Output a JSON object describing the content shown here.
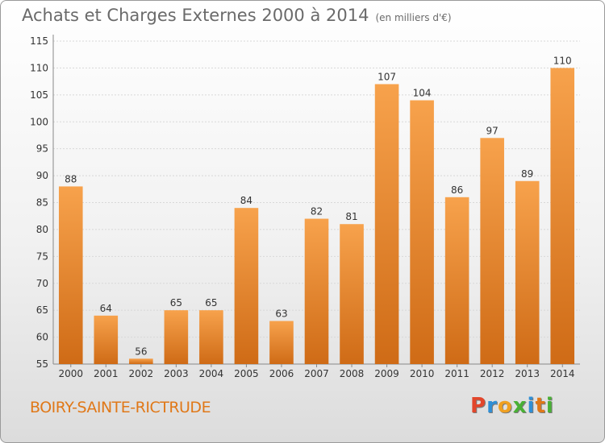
{
  "header": {
    "title": "Achats et Charges Externes 2000 à 2014",
    "subtitle": "(en milliers d'€)"
  },
  "footer": {
    "city": "BOIRY-SAINTE-RICTRUDE",
    "logo": "Proxiti"
  },
  "colors": {
    "bar_light": "#f7a24c",
    "bar_dark": "#cf6b16",
    "axis_text": "#333333",
    "grid": "#d8d8d8",
    "logo_letters": [
      "#e2462b",
      "#2f8fd6",
      "#f0a020",
      "#49b035",
      "#2f8fd6",
      "#e07818",
      "#49b035"
    ]
  },
  "chart_data": {
    "type": "bar",
    "title": "Achats et Charges Externes 2000 à 2014",
    "subtitle": "(en milliers d'€)",
    "categories": [
      "2000",
      "2001",
      "2002",
      "2003",
      "2004",
      "2005",
      "2006",
      "2007",
      "2008",
      "2009",
      "2010",
      "2011",
      "2012",
      "2013",
      "2014"
    ],
    "values": [
      88,
      64,
      56,
      65,
      65,
      84,
      63,
      82,
      81,
      107,
      104,
      86,
      97,
      89,
      110
    ],
    "ylim": [
      55,
      115
    ],
    "yticks": [
      55,
      60,
      65,
      70,
      75,
      80,
      85,
      90,
      95,
      100,
      105,
      110,
      115
    ],
    "grid": true,
    "data_labels": true
  }
}
